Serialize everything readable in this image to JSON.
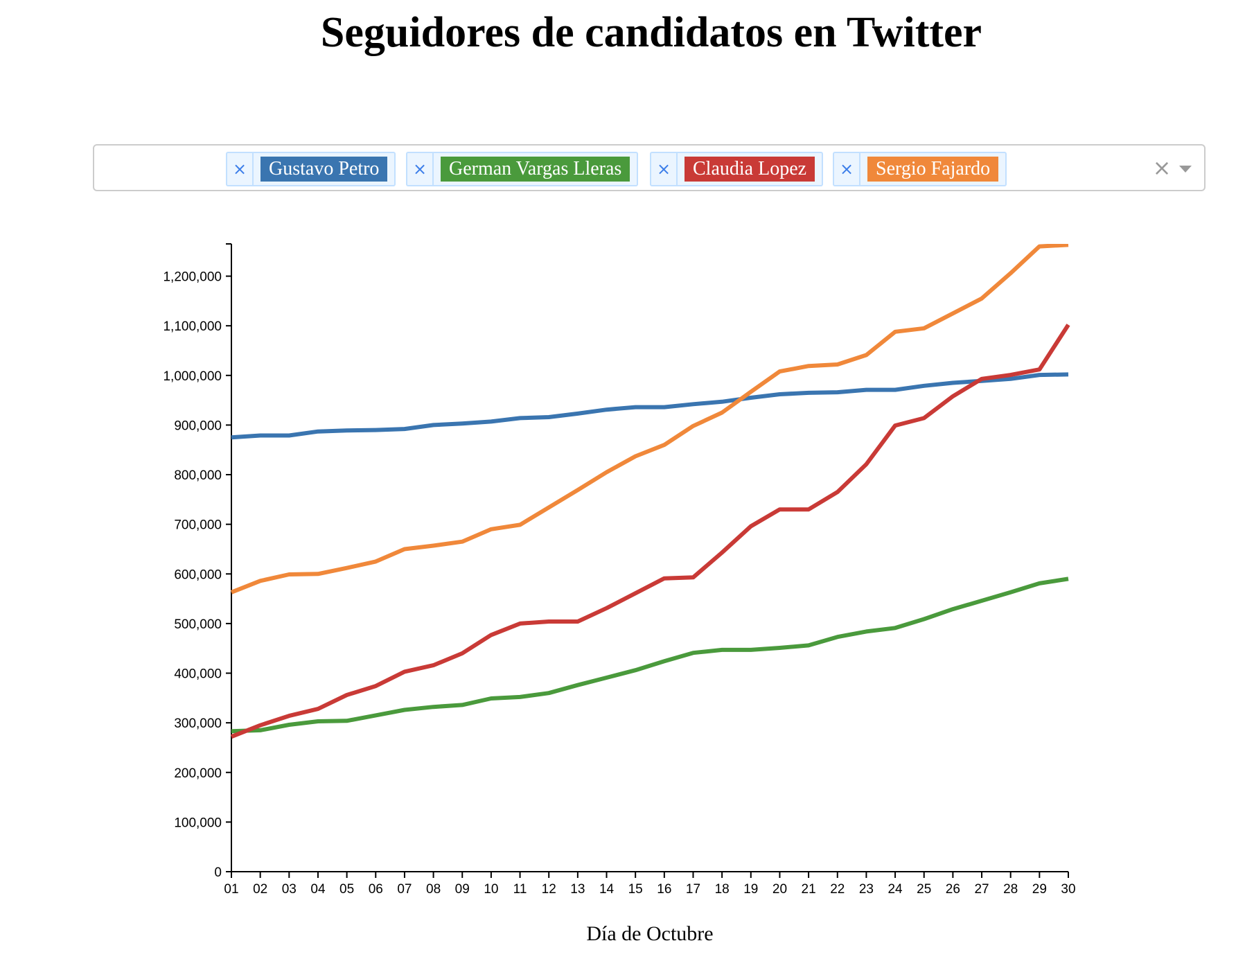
{
  "title": "Seguidores de candidatos en Twitter",
  "selector": {
    "tags": [
      {
        "label": "Gustavo Petro",
        "color": "#3a75b0",
        "remove": "×"
      },
      {
        "label": "German Vargas Lleras",
        "color": "#4a9a3c",
        "remove": "×"
      },
      {
        "label": "Claudia Lopez",
        "color": "#c93a36",
        "remove": "×"
      },
      {
        "label": "Sergio Fajardo",
        "color": "#f0883a",
        "remove": "×"
      }
    ],
    "clear_glyph": "×"
  },
  "chart_data": {
    "type": "line",
    "title": "Seguidores de candidatos en Twitter",
    "xlabel": "Día de Octubre",
    "ylabel": "",
    "ylim": [
      0,
      1265000
    ],
    "grid": false,
    "x": [
      "01",
      "02",
      "03",
      "04",
      "05",
      "06",
      "07",
      "08",
      "09",
      "10",
      "11",
      "12",
      "13",
      "14",
      "15",
      "16",
      "17",
      "18",
      "19",
      "20",
      "21",
      "22",
      "23",
      "24",
      "25",
      "26",
      "27",
      "28",
      "29",
      "30"
    ],
    "y_ticks": [
      "0",
      "100,000",
      "200,000",
      "300,000",
      "400,000",
      "500,000",
      "600,000",
      "700,000",
      "800,000",
      "900,000",
      "1,000,000",
      "1,100,000",
      "1,200,000"
    ],
    "series": [
      {
        "name": "Gustavo Petro",
        "color": "#3a75b0",
        "values": [
          875000,
          879000,
          879000,
          887000,
          889000,
          890000,
          892000,
          900000,
          903000,
          907000,
          914000,
          916000,
          923000,
          931000,
          936000,
          936000,
          942000,
          947000,
          955000,
          962000,
          965000,
          966000,
          971000,
          971000,
          979000,
          985000,
          989000,
          993000,
          1001000,
          1002000
        ]
      },
      {
        "name": "German Vargas Lleras",
        "color": "#4a9a3c",
        "values": [
          283000,
          285000,
          296000,
          303000,
          304000,
          315000,
          326000,
          332000,
          336000,
          349000,
          352000,
          360000,
          376000,
          391000,
          406000,
          424000,
          441000,
          447000,
          447000,
          451000,
          456000,
          473000,
          484000,
          491000,
          509000,
          529000,
          546000,
          563000,
          581000,
          590000
        ]
      },
      {
        "name": "Claudia Lopez",
        "color": "#c93a36",
        "values": [
          272000,
          295000,
          314000,
          328000,
          356000,
          374000,
          403000,
          416000,
          440000,
          477000,
          500000,
          504000,
          504000,
          531000,
          561000,
          591000,
          593000,
          643000,
          696000,
          730000,
          730000,
          765000,
          821000,
          899000,
          914000,
          958000,
          993000,
          1001000,
          1012000,
          1102000
        ]
      },
      {
        "name": "Sergio Fajardo",
        "color": "#f0883a",
        "values": [
          563000,
          586000,
          599000,
          600000,
          612000,
          625000,
          650000,
          657000,
          665000,
          690000,
          699000,
          734000,
          769000,
          805000,
          837000,
          860000,
          898000,
          925000,
          967000,
          1008000,
          1019000,
          1022000,
          1041000,
          1088000,
          1095000,
          1125000,
          1155000,
          1206000,
          1260000,
          1263000
        ]
      }
    ]
  }
}
